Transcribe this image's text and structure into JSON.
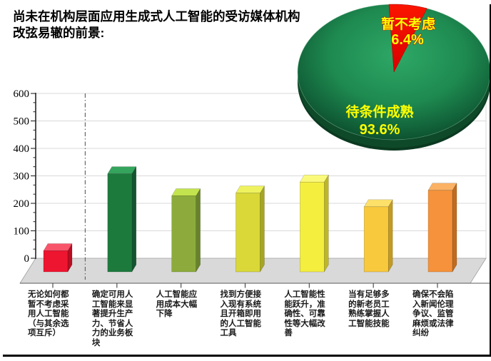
{
  "slide": {
    "title": "尚未在机构层面应用生成式人工智能的受访媒体机构改弦易辙的前景:"
  },
  "borders": {
    "right_color": "#000000",
    "bottom_color": "#000000"
  },
  "chart_data": [
    {
      "type": "pie",
      "style": "3d",
      "labels": [
        "暂不考虑",
        "待条件成熟"
      ],
      "values": [
        6.4,
        93.6
      ],
      "value_labels": [
        "6.4%",
        "93.6%"
      ],
      "slice_colors": [
        "#ee0b0b",
        "#1b7c46"
      ],
      "label_text_color": "#ffff00",
      "small_label_outline": "#d40000",
      "start_angle_deg": -3,
      "legend": "none"
    },
    {
      "type": "bar",
      "style": "3d-column",
      "categories": [
        "无论如何都暂不考虑采用人工智能（与其余选项互斥）",
        "确定可用人工智能来显著提升生产力、节省人力的业务板块",
        "人工智能应用成本大幅下降",
        "找到方便接入现有系统且开箱即用的人工智能工具",
        "人工智能性能跃升，准确性、可靠性等大幅改善",
        "当有足够多的新老员工熟练掌握人工智能技能",
        "确保不会陷入新闻伦理争议、监管麻烦或法律纠纷"
      ],
      "values": [
        30,
        310,
        230,
        240,
        280,
        190,
        250
      ],
      "bar_colors": [
        {
          "front": "#ee1530",
          "top": "#f9556a",
          "side": "#ba0c22"
        },
        {
          "front": "#1d7a3d",
          "top": "#35a45d",
          "side": "#145530"
        },
        {
          "front": "#8cab3c",
          "top": "#c3e44e",
          "side": "#67832a"
        },
        {
          "front": "#d9d838",
          "top": "#eef25e",
          "side": "#a5a523"
        },
        {
          "front": "#f4ee3e",
          "top": "#fbf97a",
          "side": "#bdb728"
        },
        {
          "front": "#f9c93d",
          "top": "#fce06a",
          "side": "#c39a22"
        },
        {
          "front": "#f5923b",
          "top": "#fbb264",
          "side": "#c06c1f"
        }
      ],
      "ylim": [
        0,
        600
      ],
      "yticks": [
        0,
        100,
        200,
        300,
        400,
        500,
        600
      ],
      "grid": true,
      "gridline_color": "#d9d9d9",
      "floor_color": "#d9d9d9",
      "separator": {
        "type": "vertical-dash-dot",
        "after_category_index": 0
      }
    }
  ]
}
